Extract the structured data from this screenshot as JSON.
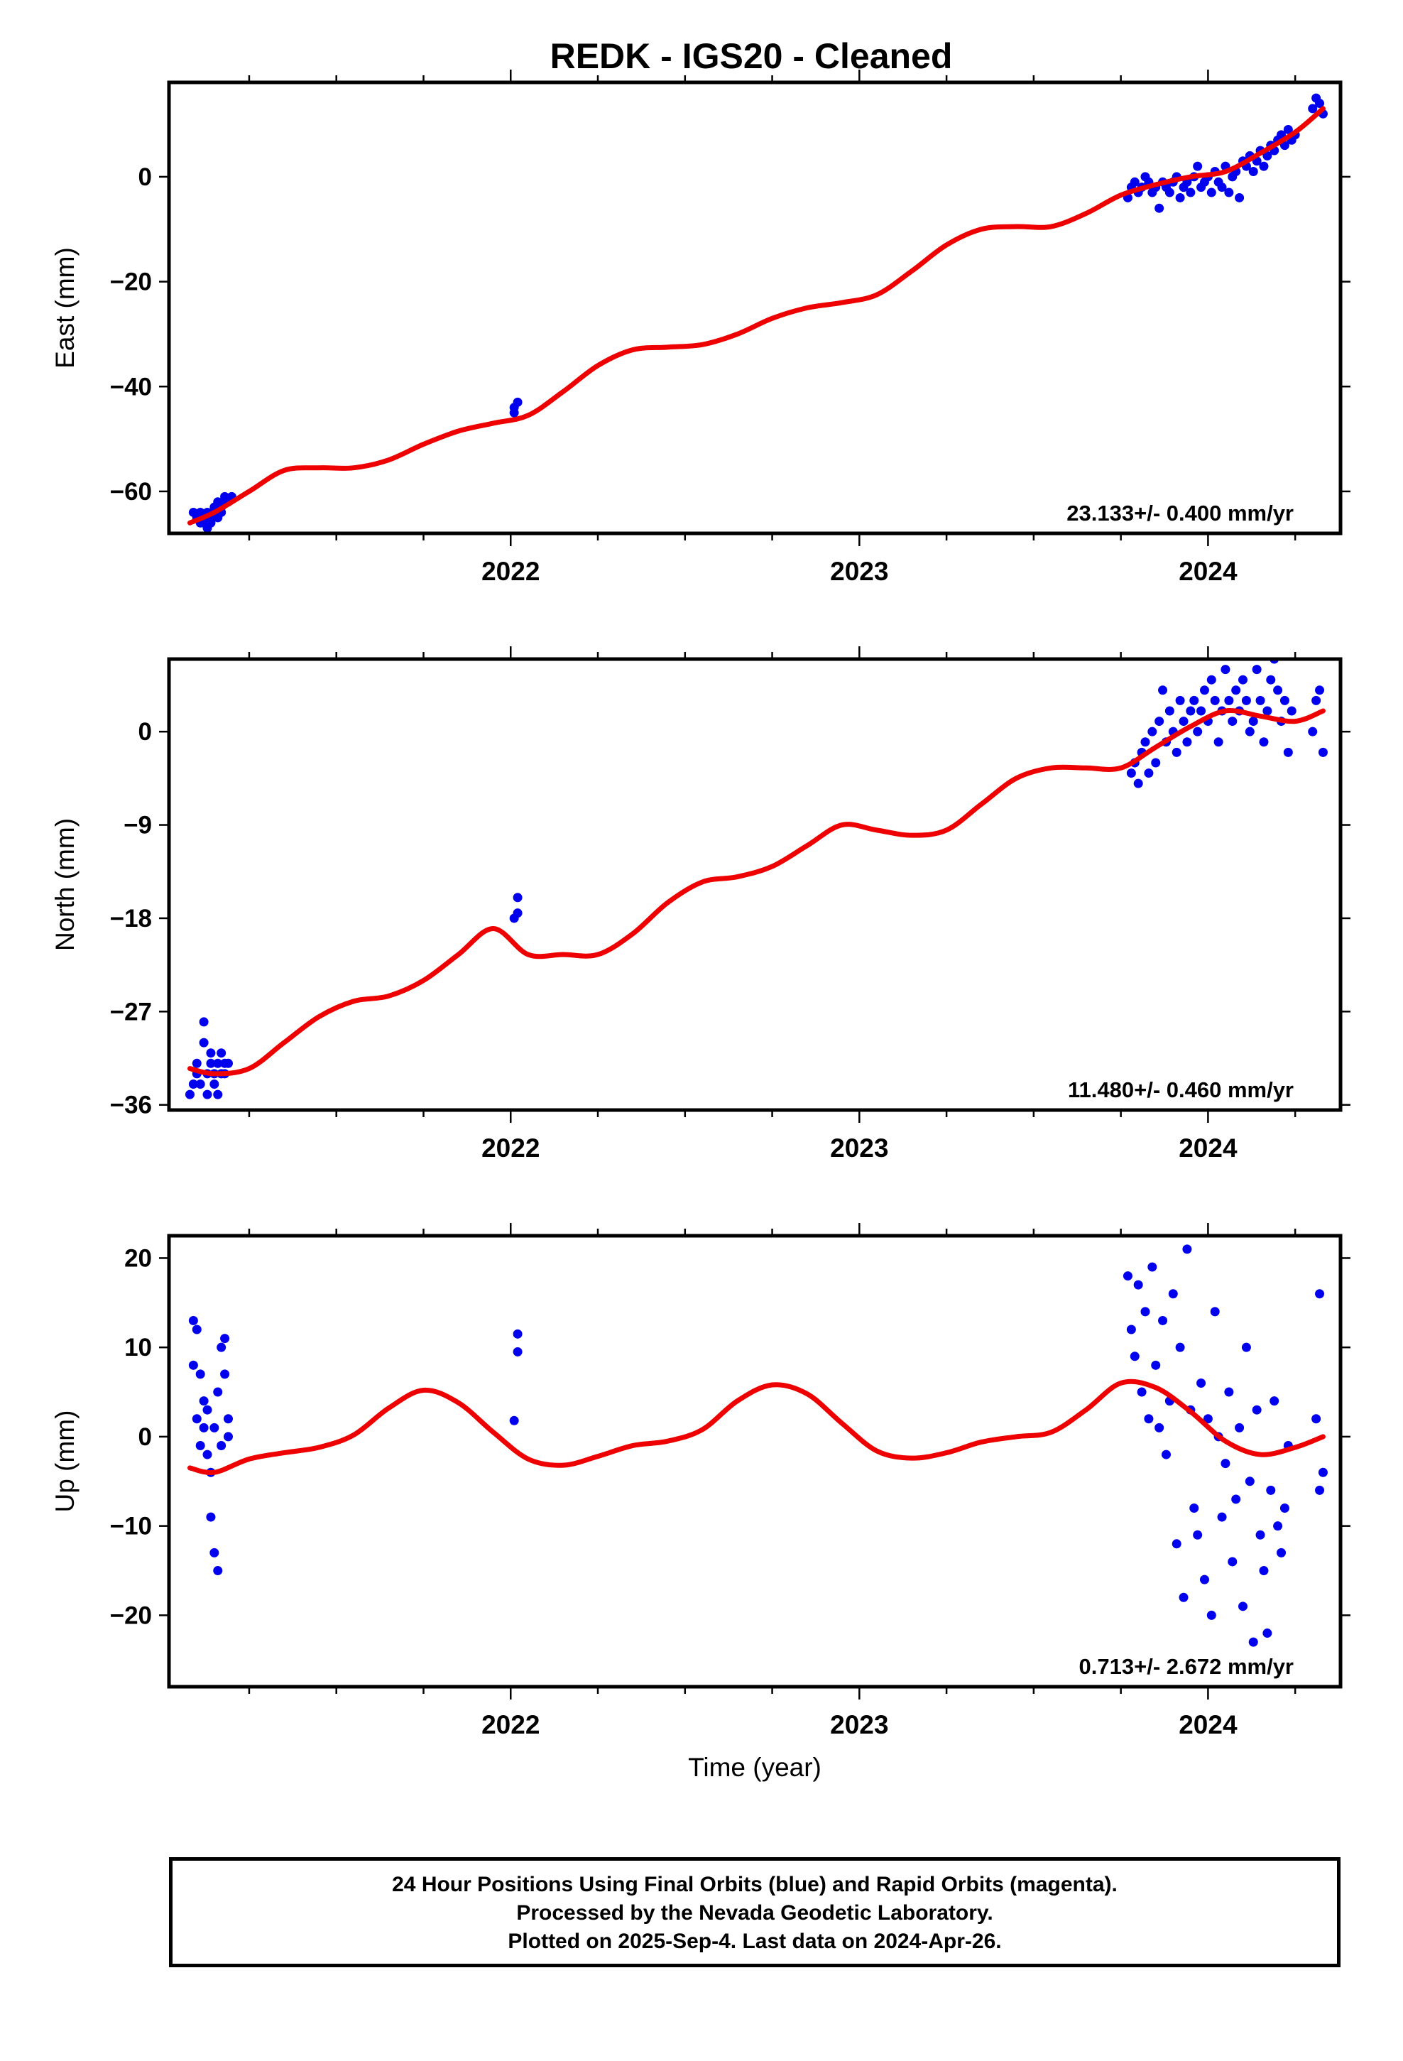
{
  "title": "REDK  - IGS20 - Cleaned",
  "footer": {
    "line1": "24 Hour Positions Using Final Orbits (blue) and Rapid Orbits (magenta).",
    "line2": "Processed by the Nevada Geodetic Laboratory.",
    "line3": "Plotted on 2025-Sep-4. Last data on 2024-Apr-26."
  },
  "colors": {
    "final_orbits": "#0000ee",
    "fit": "#ee0000",
    "frame": "#000000"
  },
  "chart_data": [
    {
      "type": "scatter",
      "name": "east",
      "ylabel": "East (mm)",
      "xlabel": "",
      "rate_label": "23.133+/- 0.400 mm/yr",
      "xlim": [
        2021.02,
        2024.38
      ],
      "ylim": [
        -68,
        18
      ],
      "xticks": [
        2022,
        2023,
        2024
      ],
      "xtick_labels": [
        "2022",
        "2023",
        "2024"
      ],
      "xminor_step": 0.25,
      "yticks": [
        -60,
        -40,
        -20,
        0
      ],
      "grid": false,
      "points": {
        "x": [
          2021.09,
          2021.1,
          2021.11,
          2021.11,
          2021.12,
          2021.12,
          2021.13,
          2021.13,
          2021.14,
          2021.14,
          2021.15,
          2021.15,
          2021.16,
          2021.16,
          2021.17,
          2021.17,
          2021.18,
          2021.18,
          2021.19,
          2021.2,
          2022.01,
          2022.01,
          2022.02,
          2023.77,
          2023.78,
          2023.79,
          2023.8,
          2023.81,
          2023.82,
          2023.83,
          2023.84,
          2023.85,
          2023.86,
          2023.87,
          2023.88,
          2023.89,
          2023.9,
          2023.91,
          2023.92,
          2023.93,
          2023.94,
          2023.95,
          2023.96,
          2023.97,
          2023.98,
          2023.99,
          2024.0,
          2024.01,
          2024.02,
          2024.03,
          2024.04,
          2024.05,
          2024.06,
          2024.07,
          2024.08,
          2024.09,
          2024.1,
          2024.11,
          2024.12,
          2024.13,
          2024.14,
          2024.15,
          2024.16,
          2024.17,
          2024.18,
          2024.19,
          2024.2,
          2024.21,
          2024.22,
          2024.23,
          2024.24,
          2024.25,
          2024.3,
          2024.31,
          2024.32,
          2024.33
        ],
        "y": [
          -64,
          -65,
          -66,
          -64,
          -65,
          -66,
          -64,
          -67,
          -66,
          -65,
          -64,
          -63,
          -65,
          -62,
          -64,
          -63,
          -62,
          -61,
          -62,
          -61,
          -45,
          -44,
          -43,
          -4,
          -2,
          -1,
          -3,
          -2,
          0,
          -1,
          -3,
          -2,
          -6,
          -1,
          -2,
          -3,
          -1,
          0,
          -4,
          -2,
          -1,
          -3,
          0,
          2,
          -2,
          -1,
          0,
          -3,
          1,
          -1,
          -2,
          2,
          -3,
          0,
          1,
          -4,
          3,
          2,
          4,
          1,
          3,
          5,
          2,
          4,
          6,
          5,
          7,
          8,
          6,
          9,
          7,
          8,
          13,
          15,
          14,
          12
        ]
      },
      "fit": {
        "x": [
          2021.08,
          2021.15,
          2021.25,
          2021.35,
          2021.45,
          2021.55,
          2021.65,
          2021.75,
          2021.85,
          2021.95,
          2022.05,
          2022.15,
          2022.25,
          2022.35,
          2022.45,
          2022.55,
          2022.65,
          2022.75,
          2022.85,
          2022.95,
          2023.05,
          2023.15,
          2023.25,
          2023.35,
          2023.45,
          2023.55,
          2023.65,
          2023.75,
          2023.85,
          2023.95,
          2024.05,
          2024.15,
          2024.25,
          2024.33
        ],
        "y": [
          -66,
          -64,
          -60,
          -56,
          -55.5,
          -55.5,
          -54,
          -51,
          -48.5,
          -47,
          -45.5,
          -41,
          -36,
          -33,
          -32.5,
          -32,
          -30,
          -27,
          -25,
          -24,
          -22.5,
          -18,
          -13,
          -10,
          -9.5,
          -9.5,
          -7,
          -3.5,
          -1.5,
          0,
          1,
          4.5,
          8.5,
          13
        ]
      }
    },
    {
      "type": "scatter",
      "name": "north",
      "ylabel": "North (mm)",
      "xlabel": "",
      "rate_label": "11.480+/- 0.460 mm/yr",
      "xlim": [
        2021.02,
        2024.38
      ],
      "ylim": [
        -36.5,
        7
      ],
      "xticks": [
        2022,
        2023,
        2024
      ],
      "xtick_labels": [
        "2022",
        "2023",
        "2024"
      ],
      "xminor_step": 0.25,
      "yticks": [
        -36,
        -27,
        -18,
        -9,
        0
      ],
      "grid": false,
      "points": {
        "x": [
          2021.08,
          2021.09,
          2021.1,
          2021.1,
          2021.11,
          2021.12,
          2021.12,
          2021.13,
          2021.13,
          2021.14,
          2021.14,
          2021.15,
          2021.15,
          2021.16,
          2021.16,
          2021.17,
          2021.17,
          2021.18,
          2021.18,
          2021.19,
          2022.01,
          2022.02,
          2022.02,
          2023.78,
          2023.79,
          2023.8,
          2023.81,
          2023.82,
          2023.83,
          2023.84,
          2023.85,
          2023.86,
          2023.87,
          2023.88,
          2023.89,
          2023.9,
          2023.91,
          2023.92,
          2023.93,
          2023.94,
          2023.95,
          2023.96,
          2023.97,
          2023.98,
          2023.99,
          2024.0,
          2024.01,
          2024.02,
          2024.03,
          2024.04,
          2024.05,
          2024.06,
          2024.07,
          2024.08,
          2024.09,
          2024.1,
          2024.11,
          2024.12,
          2024.13,
          2024.14,
          2024.15,
          2024.16,
          2024.17,
          2024.18,
          2024.19,
          2024.2,
          2024.21,
          2024.22,
          2024.23,
          2024.24,
          2024.3,
          2024.31,
          2024.32,
          2024.33
        ],
        "y": [
          -35,
          -34,
          -33,
          -32,
          -34,
          -30,
          -28,
          -33,
          -35,
          -32,
          -31,
          -34,
          -33,
          -32,
          -35,
          -31,
          -33,
          -32,
          -33,
          -32,
          -18,
          -16,
          -17.5,
          -4,
          -3,
          -5,
          -2,
          -1,
          -4,
          0,
          -3,
          1,
          4,
          -1,
          2,
          0,
          -2,
          3,
          1,
          -1,
          2,
          3,
          0,
          2,
          4,
          1,
          5,
          3,
          -1,
          2,
          6,
          3,
          1,
          4,
          2,
          5,
          3,
          0,
          1,
          6,
          3,
          -1,
          2,
          5,
          7,
          4,
          1,
          3,
          -2,
          2,
          0,
          3,
          4,
          -2
        ]
      },
      "fit": {
        "x": [
          2021.08,
          2021.15,
          2021.25,
          2021.35,
          2021.45,
          2021.55,
          2021.65,
          2021.75,
          2021.85,
          2021.95,
          2022.05,
          2022.15,
          2022.25,
          2022.35,
          2022.45,
          2022.55,
          2022.65,
          2022.75,
          2022.85,
          2022.95,
          2023.05,
          2023.15,
          2023.25,
          2023.35,
          2023.45,
          2023.55,
          2023.65,
          2023.75,
          2023.85,
          2023.95,
          2024.05,
          2024.15,
          2024.25,
          2024.33
        ],
        "y": [
          -32.5,
          -33,
          -32.5,
          -30,
          -27.5,
          -26,
          -25.5,
          -24,
          -21.5,
          -19,
          -21.5,
          -21.5,
          -21.5,
          -19.5,
          -16.5,
          -14.5,
          -14,
          -13,
          -11,
          -9,
          -9.5,
          -10,
          -9.5,
          -7,
          -4.5,
          -3.5,
          -3.5,
          -3.5,
          -1.5,
          0.5,
          2,
          1.5,
          1,
          2
        ]
      }
    },
    {
      "type": "scatter",
      "name": "up",
      "ylabel": "Up (mm)",
      "xlabel": "Time (year)",
      "rate_label": "0.713+/- 2.672 mm/yr",
      "xlim": [
        2021.02,
        2024.38
      ],
      "ylim": [
        -28,
        22.5
      ],
      "xticks": [
        2022,
        2023,
        2024
      ],
      "xtick_labels": [
        "2022",
        "2023",
        "2024"
      ],
      "xminor_step": 0.25,
      "yticks": [
        -20,
        -10,
        0,
        10,
        20
      ],
      "grid": false,
      "points": {
        "x": [
          2021.09,
          2021.09,
          2021.1,
          2021.1,
          2021.11,
          2021.11,
          2021.12,
          2021.12,
          2021.13,
          2021.13,
          2021.14,
          2021.14,
          2021.15,
          2021.15,
          2021.16,
          2021.16,
          2021.17,
          2021.17,
          2021.18,
          2021.18,
          2021.19,
          2021.19,
          2022.01,
          2022.02,
          2022.02,
          2023.77,
          2023.78,
          2023.79,
          2023.8,
          2023.81,
          2023.82,
          2023.83,
          2023.84,
          2023.85,
          2023.86,
          2023.87,
          2023.88,
          2023.89,
          2023.9,
          2023.91,
          2023.92,
          2023.93,
          2023.94,
          2023.95,
          2023.96,
          2023.97,
          2023.98,
          2023.99,
          2024.0,
          2024.01,
          2024.02,
          2024.03,
          2024.04,
          2024.05,
          2024.06,
          2024.07,
          2024.08,
          2024.09,
          2024.1,
          2024.11,
          2024.12,
          2024.13,
          2024.14,
          2024.15,
          2024.16,
          2024.17,
          2024.18,
          2024.19,
          2024.2,
          2024.21,
          2024.22,
          2024.23,
          2024.31,
          2024.32,
          2024.32,
          2024.33
        ],
        "y": [
          13,
          8,
          12,
          2,
          7,
          -1,
          1,
          4,
          -2,
          3,
          -4,
          -9,
          1,
          -13,
          -15,
          5,
          -1,
          10,
          7,
          11,
          2,
          0,
          1.8,
          9.5,
          11.5,
          18,
          12,
          9,
          17,
          5,
          14,
          2,
          19,
          8,
          1,
          13,
          -2,
          4,
          16,
          -12,
          10,
          -18,
          21,
          3,
          -8,
          -11,
          6,
          -16,
          2,
          -20,
          14,
          0,
          -9,
          -3,
          5,
          -14,
          -7,
          1,
          -19,
          10,
          -5,
          -23,
          3,
          -11,
          -15,
          -22,
          -6,
          4,
          -10,
          -13,
          -8,
          -1,
          2,
          -6,
          16,
          -4
        ]
      },
      "fit": {
        "x": [
          2021.08,
          2021.15,
          2021.25,
          2021.35,
          2021.45,
          2021.55,
          2021.65,
          2021.75,
          2021.85,
          2021.95,
          2022.05,
          2022.15,
          2022.25,
          2022.35,
          2022.45,
          2022.55,
          2022.65,
          2022.75,
          2022.85,
          2022.95,
          2023.05,
          2023.15,
          2023.25,
          2023.35,
          2023.45,
          2023.55,
          2023.65,
          2023.75,
          2023.85,
          2023.95,
          2024.05,
          2024.15,
          2024.25,
          2024.33
        ],
        "y": [
          -3.5,
          -4,
          -2.5,
          -1.8,
          -1.2,
          0.2,
          3.2,
          5.2,
          3.8,
          0.5,
          -2.5,
          -3.2,
          -2.2,
          -1,
          -0.5,
          0.8,
          4,
          5.8,
          4.8,
          1.5,
          -1.6,
          -2.4,
          -1.8,
          -0.6,
          0,
          0.5,
          3,
          6,
          5.5,
          2.8,
          -0.5,
          -2,
          -1.2,
          0
        ]
      }
    }
  ]
}
